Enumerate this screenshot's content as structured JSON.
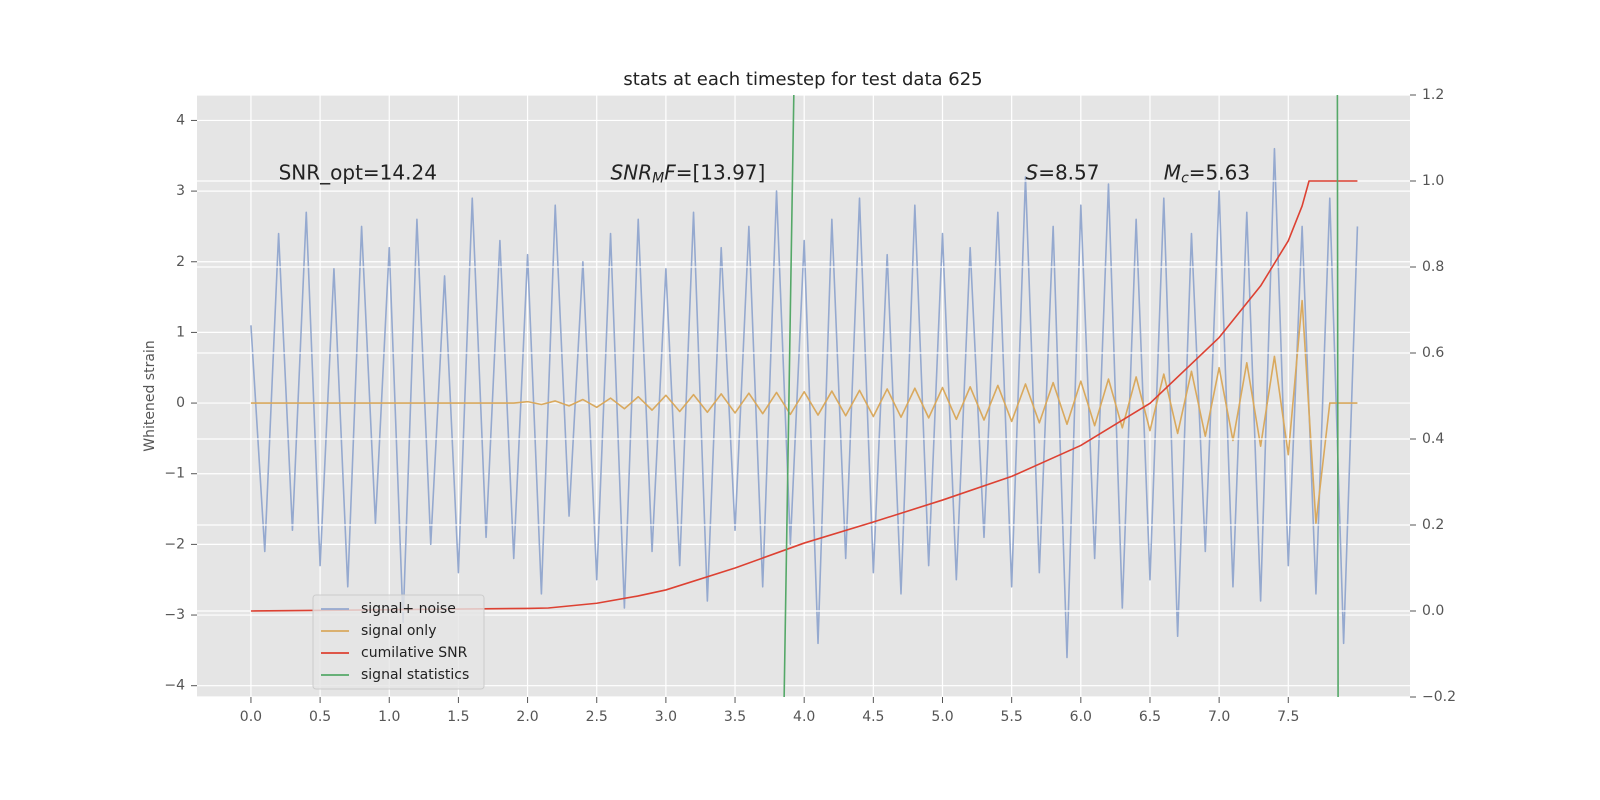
{
  "chart_data": {
    "type": "line",
    "title": "stats at each timestep for test data 625",
    "ylabel": "Whitened strain",
    "grid": true,
    "legend": "lower left",
    "xlim": [
      -0.39,
      8.38
    ],
    "ylim": [
      -4.16,
      4.36
    ],
    "y2lim": [
      -0.2,
      1.2
    ],
    "xticks": [
      {
        "value": 0,
        "label": "0.0"
      },
      0.5,
      {
        "value": 1,
        "label": "1.0"
      },
      1.5,
      {
        "value": 2,
        "label": "2.0"
      },
      2.5,
      {
        "value": 3,
        "label": "3.0"
      },
      3.5,
      {
        "value": 4,
        "label": "4.0"
      },
      4.5,
      {
        "value": 5,
        "label": "5.0"
      },
      5.5,
      {
        "value": 6,
        "label": "6.0"
      },
      6.5,
      {
        "value": 7,
        "label": "7.0"
      },
      7.5
    ],
    "yticks": [
      {
        "value": -4,
        "label": "−4"
      },
      {
        "value": -3,
        "label": "−3"
      },
      {
        "value": -2,
        "label": "−2"
      },
      {
        "value": -1,
        "label": "−1"
      },
      0,
      1,
      2,
      3,
      4
    ],
    "y2ticks": [
      {
        "value": -0.2,
        "label": "−0.2"
      },
      {
        "value": 0,
        "label": "0.0"
      },
      0.2,
      0.4,
      0.6,
      0.8,
      {
        "value": 1,
        "label": "1.0"
      },
      1.2
    ],
    "x": [
      0,
      0.1,
      0.2,
      0.3,
      0.4,
      0.5,
      0.6,
      0.7,
      0.8,
      0.9,
      1,
      1.1,
      1.2,
      1.3,
      1.4,
      1.5,
      1.6,
      1.7,
      1.8,
      1.9,
      2,
      2.1,
      2.2,
      2.3,
      2.4,
      2.5,
      2.6,
      2.7,
      2.8,
      2.9,
      3,
      3.1,
      3.2,
      3.3,
      3.4,
      3.5,
      3.6,
      3.7,
      3.8,
      3.9,
      4,
      4.1,
      4.2,
      4.3,
      4.4,
      4.5,
      4.6,
      4.7,
      4.8,
      4.9,
      5,
      5.1,
      5.2,
      5.3,
      5.4,
      5.5,
      5.6,
      5.7,
      5.8,
      5.9,
      6,
      6.1,
      6.2,
      6.3,
      6.4,
      6.5,
      6.6,
      6.7,
      6.8,
      6.9,
      7,
      7.1,
      7.2,
      7.3,
      7.4,
      7.5,
      7.6,
      7.7,
      7.8,
      7.9,
      8
    ],
    "series": [
      {
        "name": "signal+ noise",
        "color": "#95a9cf",
        "values": [
          1.1,
          -2.1,
          2.4,
          -1.8,
          2.7,
          -2.3,
          1.9,
          -2.6,
          2.5,
          -1.7,
          2.2,
          -3.1,
          2.6,
          -2.0,
          1.8,
          -2.4,
          2.9,
          -1.9,
          2.3,
          -2.2,
          2.1,
          -2.7,
          2.8,
          -1.6,
          2.0,
          -2.5,
          2.4,
          -2.9,
          2.6,
          -2.1,
          1.9,
          -2.3,
          2.7,
          -2.8,
          2.2,
          -1.8,
          2.5,
          -2.6,
          3.0,
          -2.0,
          2.3,
          -3.4,
          2.6,
          -2.2,
          2.9,
          -2.4,
          2.1,
          -2.7,
          2.8,
          -2.3,
          2.4,
          -2.5,
          2.2,
          -1.9,
          2.7,
          -2.6,
          3.2,
          -2.4,
          2.5,
          -3.6,
          2.8,
          -2.2,
          3.1,
          -2.9,
          2.6,
          -2.5,
          2.9,
          -3.3,
          2.4,
          -2.1,
          3.0,
          -2.6,
          2.7,
          -2.8,
          3.6,
          -2.3,
          2.5,
          -2.7,
          2.9,
          -3.4,
          2.5
        ]
      },
      {
        "name": "signal only",
        "color": "#d9a95e",
        "values": [
          0,
          0,
          0,
          0,
          0,
          0,
          0,
          0,
          0,
          0,
          0,
          0,
          0,
          0,
          0,
          0,
          0,
          0,
          0,
          0,
          0.02,
          -0.02,
          0.03,
          -0.04,
          0.05,
          -0.06,
          0.07,
          -0.08,
          0.09,
          -0.1,
          0.11,
          -0.12,
          0.12,
          -0.13,
          0.13,
          -0.14,
          0.14,
          -0.15,
          0.15,
          -0.16,
          0.16,
          -0.17,
          0.17,
          -0.18,
          0.18,
          -0.19,
          0.2,
          -0.2,
          0.21,
          -0.21,
          0.22,
          -0.23,
          0.23,
          -0.24,
          0.25,
          -0.26,
          0.27,
          -0.28,
          0.29,
          -0.3,
          0.31,
          -0.32,
          0.34,
          -0.35,
          0.37,
          -0.39,
          0.41,
          -0.43,
          0.45,
          -0.47,
          0.5,
          -0.53,
          0.57,
          -0.61,
          0.66,
          -0.73,
          1.45,
          -1.7,
          0,
          0,
          0
        ]
      },
      {
        "name": "cumilative SNR",
        "color": "#dd4132",
        "axis": "y2",
        "x": [
          0,
          1,
          2,
          2.15,
          2.5,
          2.8,
          3,
          3.5,
          4,
          4.5,
          5,
          5.5,
          6,
          6.5,
          7,
          7.3,
          7.5,
          7.6,
          7.65,
          8
        ],
        "values": [
          0,
          0.003,
          0.006,
          0.007,
          0.018,
          0.035,
          0.049,
          0.1,
          0.158,
          0.207,
          0.258,
          0.313,
          0.385,
          0.483,
          0.636,
          0.756,
          0.861,
          0.942,
          1.0,
          1.0
        ]
      },
      {
        "name": "signal statistics",
        "color": "#55a868",
        "axis": "y2",
        "x": [
          3.855,
          3.925,
          null,
          7.855,
          7.86
        ],
        "values": [
          -0.2,
          1.2,
          null,
          1.2,
          -0.2
        ]
      }
    ],
    "annotations": [
      {
        "x": 0.2,
        "y": 3.25,
        "parts": [
          {
            "text": "SNR_opt=14.24"
          }
        ]
      },
      {
        "x": 2.6,
        "y": 3.25,
        "parts": [
          {
            "text": "SNR",
            "italic": true
          },
          {
            "text": "M",
            "italic": true,
            "sub": true
          },
          {
            "text": "F",
            "italic": true
          },
          {
            "text": "=[13.97]"
          }
        ]
      },
      {
        "x": 5.6,
        "y": 3.25,
        "parts": [
          {
            "text": "S",
            "italic": true
          },
          {
            "text": "=8.57"
          }
        ]
      },
      {
        "x": 6.6,
        "y": 3.25,
        "parts": [
          {
            "text": "M",
            "italic": true
          },
          {
            "text": "c",
            "italic": true,
            "sub": true
          },
          {
            "text": "=5.63"
          }
        ]
      }
    ]
  }
}
